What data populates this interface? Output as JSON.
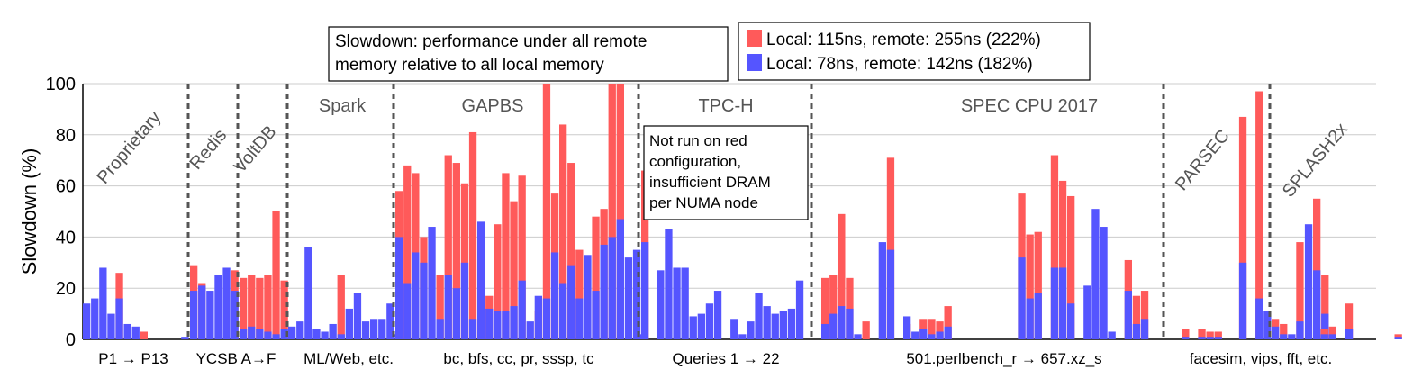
{
  "chart_data": {
    "type": "bar",
    "ylabel": "Slowdown (%)",
    "ylim": [
      0,
      100
    ],
    "yticks": [
      0,
      20,
      40,
      60,
      80,
      100
    ],
    "grid": true,
    "note": [
      "Slowdown: performance under all remote",
      "memory relative to all local memory"
    ],
    "legend": {
      "placement": "top",
      "entries": [
        {
          "label": "Local: 115ns, remote: 255ns (222%)",
          "color": "#ff5a5a"
        },
        {
          "label": "Local:   78ns, remote: 142ns (182%)",
          "color": "#5555ff"
        }
      ]
    },
    "series_colors": {
      "red": "#ff5a5a",
      "blue": "#5555ff"
    },
    "groups": [
      {
        "name": "Proprietary",
        "rotated": true,
        "range_label": "P1 → P13",
        "red": [
          0,
          0,
          0,
          0,
          26,
          0,
          0,
          3,
          0,
          0,
          0,
          0,
          0
        ],
        "blue": [
          14,
          16,
          28,
          10,
          16,
          6,
          5,
          0,
          0,
          0,
          0,
          0,
          1
        ]
      },
      {
        "name": "Redis",
        "rotated": true,
        "range_label": "YCSB A→F",
        "red": [
          29,
          22,
          0,
          0,
          0,
          27
        ],
        "blue": [
          19,
          21,
          19,
          25,
          28,
          19
        ]
      },
      {
        "name": "VoltDB",
        "rotated": true,
        "range_label": "",
        "red": [
          24,
          25,
          24,
          25,
          50,
          23
        ],
        "blue": [
          4,
          5,
          4,
          3,
          2,
          4
        ]
      },
      {
        "name": "Spark",
        "rotated": false,
        "range_label": "ML/Web, etc.",
        "red": [
          0,
          0,
          0,
          0,
          0,
          0,
          25,
          0,
          0,
          0,
          0,
          0,
          0,
          0
        ],
        "blue": [
          5,
          7,
          36,
          4,
          3,
          6,
          2,
          12,
          18,
          7,
          8,
          8,
          14,
          2
        ]
      },
      {
        "name": "GAPBS",
        "rotated": false,
        "range_label": "bc, bfs, cc, pr, sssp, tc",
        "red": [
          58,
          68,
          65,
          40,
          0,
          25,
          72,
          69,
          61,
          81,
          0,
          17,
          45,
          65,
          54,
          64,
          0,
          11,
          100,
          57,
          84,
          69,
          35,
          0,
          48,
          51,
          100,
          100,
          0,
          0,
          66
        ],
        "blue": [
          40,
          22,
          34,
          30,
          44,
          8,
          25,
          20,
          30,
          8,
          46,
          12,
          11,
          11,
          13,
          23,
          7,
          17,
          16,
          34,
          22,
          29,
          16,
          33,
          19,
          37,
          40,
          47,
          32,
          35,
          38
        ]
      },
      {
        "name": "TPC-H",
        "rotated": false,
        "range_label": "Queries 1 → 22",
        "note": [
          "Not run on red",
          "configuration,",
          "insufficient DRAM",
          "per NUMA node"
        ],
        "red": [
          0,
          0,
          0,
          0,
          0,
          0,
          0,
          0,
          0,
          0,
          0,
          0,
          0,
          0,
          0,
          0,
          0,
          0,
          0,
          0,
          0,
          0
        ],
        "blue": [
          2,
          0,
          27,
          43,
          28,
          28,
          9,
          10,
          14,
          19,
          0,
          8,
          2,
          7,
          18,
          13,
          10,
          11,
          12,
          23,
          0,
          0
        ]
      },
      {
        "name": "SPEC CPU 2017",
        "rotated": false,
        "range_label": "501.perlbench_r → 657.xz_s",
        "red": [
          24,
          25,
          49,
          24,
          0,
          7,
          0,
          0,
          71,
          0,
          6,
          0,
          8,
          8,
          7,
          13,
          0,
          0,
          0,
          0,
          0,
          0,
          0,
          0,
          57,
          41,
          42,
          0,
          72,
          62,
          56,
          0,
          0,
          0,
          0,
          0,
          0,
          31,
          17,
          19,
          0,
          0,
          0,
          0,
          0,
          0,
          0,
          0,
          0,
          0,
          0,
          0,
          0,
          0,
          0,
          0,
          0,
          0,
          0,
          0,
          55,
          25
        ],
        "blue": [
          6,
          10,
          13,
          12,
          2,
          0,
          0,
          38,
          35,
          0,
          9,
          3,
          4,
          2,
          3,
          5,
          0,
          0,
          0,
          0,
          0,
          0,
          0,
          0,
          32,
          16,
          18,
          0,
          28,
          28,
          14,
          0,
          21,
          51,
          44,
          3,
          0,
          19,
          6,
          8,
          0,
          0,
          0,
          0,
          0,
          0,
          0,
          0,
          0,
          0,
          0,
          0,
          0,
          0,
          0,
          0,
          0,
          0,
          0,
          45,
          27,
          10
        ]
      },
      {
        "name": "PARSEC",
        "rotated": true,
        "range_label": "facesim, vips, fft, etc.",
        "red": [
          0,
          0,
          4,
          0,
          4,
          3,
          3,
          0,
          0,
          87,
          0,
          97,
          0,
          0
        ],
        "blue": [
          0,
          0,
          1,
          0,
          1,
          1,
          1,
          0,
          0,
          30,
          0,
          16,
          11,
          0
        ]
      },
      {
        "name": "SPLASH2x",
        "rotated": true,
        "range_label": "",
        "red": [
          8,
          6,
          0,
          38,
          0,
          0,
          4,
          5,
          0,
          14,
          0,
          0,
          0,
          0,
          0,
          2
        ],
        "blue": [
          5,
          2,
          2,
          7,
          0,
          0,
          2,
          2,
          0,
          4,
          0,
          0,
          0,
          0,
          0,
          1
        ]
      }
    ]
  }
}
